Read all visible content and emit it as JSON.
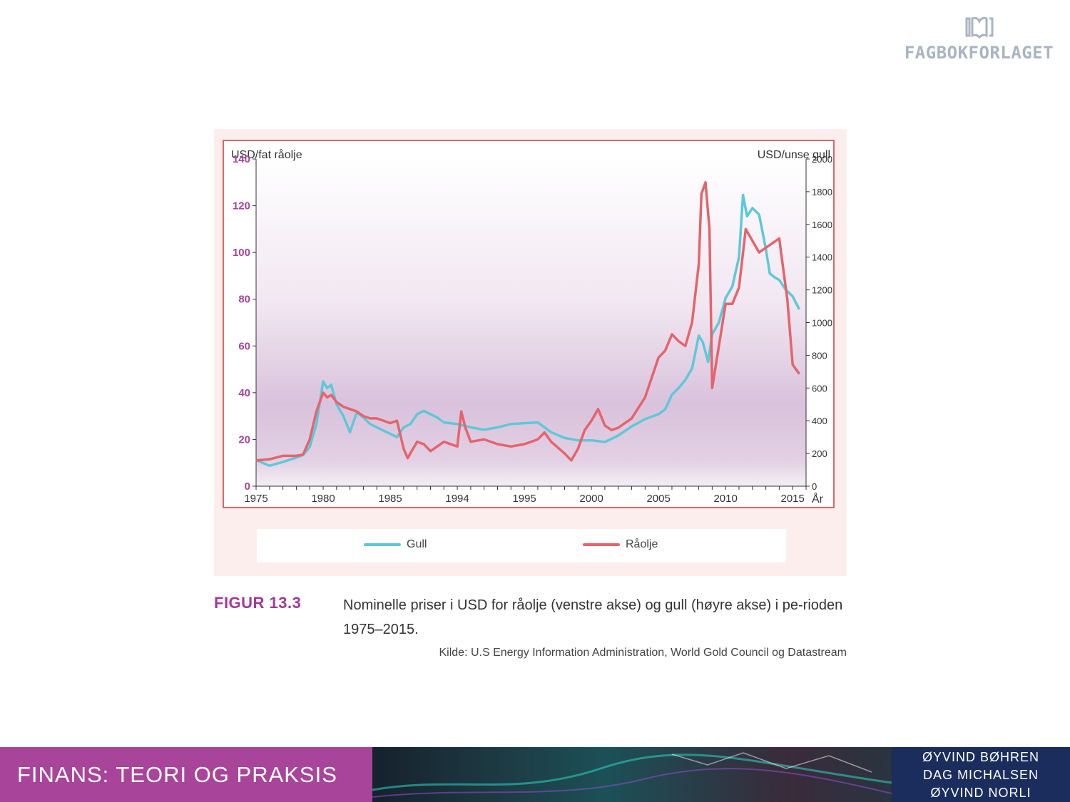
{
  "publisher": {
    "name": "FAGBOKFORLAGET",
    "logo_icon": "open-book-icon"
  },
  "figure": {
    "label": "FIGUR 13.3",
    "caption": "Nominelle priser i USD for råolje (venstre akse) og gull (høyre akse) i pe-rioden 1975–2015.",
    "source": "Kilde: U.S Energy Information Administration, World Gold Council og Datastream"
  },
  "chart_data": {
    "type": "line",
    "ylabel": "USD/fat råolje",
    "y2label": "USD/unse gull",
    "xlabel_right": "År",
    "ylim": [
      0,
      140
    ],
    "y2lim": [
      0,
      2000
    ],
    "yticks": [
      "0",
      "20",
      "40",
      "60",
      "80",
      "100",
      "120",
      "140"
    ],
    "y2ticks": [
      "0",
      "200",
      "400",
      "600",
      "800",
      "1000",
      "1200",
      "1400",
      "1600",
      "1800",
      "2000"
    ],
    "xticks": [
      "1975",
      "1980",
      "1985",
      "1994",
      "1995",
      "2000",
      "2005",
      "2010",
      "2015"
    ],
    "grid": false,
    "legend_position": "bottom",
    "colors": {
      "gold": "#5ec8d8",
      "oil": "#e5646b",
      "left_axis_text": "#a8449a"
    },
    "series": [
      {
        "name": "Gull",
        "axis": "right",
        "x": [
          1975,
          1976,
          1977,
          1978,
          1978.5,
          1979,
          1979.5,
          1980,
          1980.3,
          1980.6,
          1981,
          1981.5,
          1982,
          1982.5,
          1983,
          1983.5,
          1984,
          1985,
          1985.5,
          1986,
          1986.5,
          1987,
          1987.5,
          1988,
          1988.5,
          1989,
          1990,
          1991,
          1992,
          1993,
          1994,
          1995,
          1996,
          1997,
          1998,
          1999,
          2000,
          2001,
          2002,
          2003,
          2004,
          2005,
          2005.5,
          2006,
          2006.5,
          2007,
          2007.5,
          2008,
          2008.3,
          2008.7,
          2009,
          2009.5,
          2010,
          2010.5,
          2011,
          2011.3,
          2011.6,
          2012,
          2012.5,
          2013,
          2013.3,
          2013.6,
          2014,
          2014.5,
          2015,
          2015.5
        ],
        "values": [
          160,
          125,
          148,
          175,
          190,
          240,
          380,
          640,
          600,
          620,
          500,
          430,
          330,
          450,
          420,
          380,
          360,
          320,
          300,
          360,
          380,
          440,
          460,
          440,
          420,
          390,
          380,
          360,
          345,
          360,
          380,
          385,
          390,
          330,
          295,
          280,
          280,
          270,
          310,
          365,
          410,
          440,
          470,
          560,
          600,
          650,
          720,
          920,
          880,
          760,
          930,
          1000,
          1150,
          1220,
          1400,
          1780,
          1650,
          1700,
          1660,
          1450,
          1300,
          1280,
          1260,
          1200,
          1160,
          1080
        ]
      },
      {
        "name": "Råolje",
        "axis": "left",
        "x": [
          1975,
          1976,
          1977,
          1978,
          1978.5,
          1979,
          1979.5,
          1980,
          1980.3,
          1980.6,
          1981,
          1981.5,
          1982,
          1982.5,
          1983,
          1983.5,
          1984,
          1985,
          1985.5,
          1986,
          1986.3,
          1986.6,
          1987,
          1987.5,
          1988,
          1988.5,
          1989,
          1990,
          1990.3,
          1990.6,
          1991,
          1992,
          1993,
          1994,
          1995,
          1996,
          1996.5,
          1997,
          1998,
          1998.5,
          1999,
          1999.5,
          2000,
          2000.5,
          2001,
          2001.5,
          2002,
          2003,
          2004,
          2005,
          2005.5,
          2006,
          2006.5,
          2007,
          2007.5,
          2008,
          2008.2,
          2008.5,
          2008.8,
          2009,
          2009.5,
          2010,
          2010.5,
          2011,
          2011.5,
          2012,
          2012.5,
          2013,
          2013.5,
          2014,
          2014.3,
          2014.6,
          2015,
          2015.5
        ],
        "values": [
          11,
          11.5,
          13,
          13,
          13.5,
          20,
          32,
          40,
          38,
          39,
          36,
          34,
          33,
          32,
          30,
          29,
          29,
          27,
          28,
          16,
          12,
          15,
          19,
          18,
          15,
          17,
          19,
          17,
          32,
          25,
          19,
          20,
          18,
          17,
          18,
          20,
          23,
          19,
          14,
          11,
          16,
          24,
          28,
          33,
          26,
          24,
          25,
          29,
          38,
          55,
          58,
          65,
          62,
          60,
          70,
          95,
          125,
          130,
          110,
          42,
          60,
          78,
          78,
          85,
          110,
          105,
          100,
          102,
          104,
          106,
          93,
          80,
          52,
          48
        ]
      }
    ]
  },
  "footer": {
    "book_title": "FINANS: TEORI OG PRAKSIS",
    "authors": [
      "ØYVIND BØHREN",
      "DAG MICHALSEN",
      "ØYVIND NORLI"
    ]
  }
}
